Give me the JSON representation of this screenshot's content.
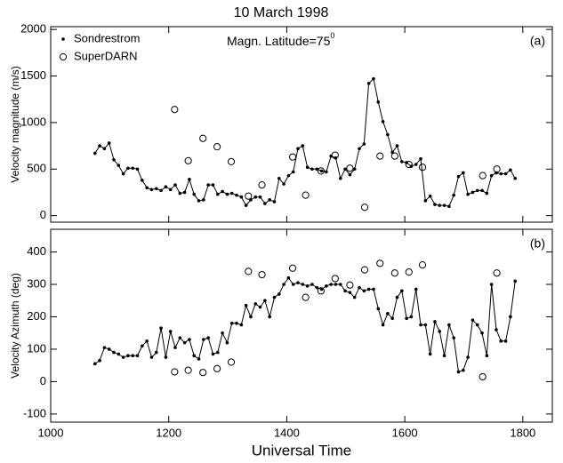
{
  "chart_data": [
    {
      "type": "line",
      "title": "10  March  1998",
      "ylabel": "Velocity magnitude (m/s)",
      "panel_label": "(a)",
      "annotation": "Magn. Latitude=75",
      "annotation_sup": "0",
      "xlim": [
        1000,
        1850
      ],
      "xticks": [
        1000,
        1200,
        1400,
        1600,
        1800
      ],
      "show_xtick_labels": false,
      "ylim": [
        -70,
        2030
      ],
      "yticks": [
        0,
        500,
        1000,
        1500,
        2000
      ],
      "legend": "upper left",
      "series": [
        {
          "name": "Sondrestrom",
          "color": "#000000",
          "style": "line-dot",
          "x": [
            1075,
            1083,
            1091,
            1099,
            1107,
            1115,
            1123,
            1131,
            1139,
            1147,
            1155,
            1163,
            1171,
            1179,
            1187,
            1195,
            1203,
            1211,
            1219,
            1227,
            1235,
            1243,
            1251,
            1259,
            1267,
            1275,
            1283,
            1291,
            1299,
            1307,
            1315,
            1323,
            1331,
            1339,
            1347,
            1355,
            1363,
            1371,
            1379,
            1387,
            1395,
            1403,
            1411,
            1419,
            1427,
            1435,
            1443,
            1451,
            1459,
            1467,
            1475,
            1483,
            1491,
            1499,
            1507,
            1515,
            1523,
            1531,
            1539,
            1547,
            1555,
            1563,
            1571,
            1579,
            1587,
            1595,
            1603,
            1611,
            1619,
            1627,
            1635,
            1643,
            1651,
            1659,
            1667,
            1675,
            1683,
            1691,
            1699,
            1707,
            1715,
            1723,
            1731,
            1739,
            1747,
            1755,
            1763,
            1771,
            1779,
            1787
          ],
          "values": [
            670,
            750,
            720,
            780,
            600,
            540,
            450,
            510,
            510,
            500,
            380,
            300,
            280,
            290,
            270,
            310,
            280,
            330,
            240,
            250,
            390,
            230,
            160,
            170,
            330,
            330,
            230,
            260,
            230,
            240,
            220,
            200,
            110,
            170,
            200,
            200,
            130,
            170,
            150,
            400,
            340,
            430,
            470,
            720,
            750,
            520,
            500,
            500,
            480,
            470,
            640,
            620,
            400,
            500,
            440,
            500,
            720,
            770,
            1420,
            1470,
            1220,
            1010,
            870,
            680,
            750,
            580,
            570,
            530,
            550,
            610,
            160,
            210,
            120,
            110,
            110,
            100,
            220,
            420,
            460,
            230,
            250,
            270,
            270,
            240,
            430,
            460,
            450,
            450,
            490,
            400
          ]
        },
        {
          "name": "SuperDARN",
          "color": "#000000",
          "style": "open-circle",
          "x": [
            1210,
            1233,
            1258,
            1282,
            1306,
            1335,
            1358,
            1410,
            1432,
            1458,
            1482,
            1507,
            1532,
            1558,
            1583,
            1607,
            1630,
            1732,
            1756
          ],
          "values": [
            1140,
            590,
            830,
            740,
            580,
            210,
            330,
            630,
            220,
            480,
            650,
            510,
            90,
            640,
            640,
            550,
            520,
            430,
            500
          ]
        }
      ]
    },
    {
      "type": "line",
      "ylabel": "Velocity Azimuth (deg)",
      "panel_label": "(b)",
      "xlabel": "Universal Time",
      "xlim": [
        1000,
        1850
      ],
      "xticks": [
        1000,
        1200,
        1400,
        1600,
        1800
      ],
      "show_xtick_labels": true,
      "ylim": [
        -125,
        470
      ],
      "yticks": [
        -100,
        0,
        100,
        200,
        300,
        400
      ],
      "series": [
        {
          "color": "#000000",
          "style": "line-dot",
          "x": [
            1075,
            1083,
            1091,
            1099,
            1107,
            1115,
            1123,
            1131,
            1139,
            1147,
            1155,
            1163,
            1171,
            1179,
            1187,
            1195,
            1203,
            1211,
            1219,
            1227,
            1235,
            1243,
            1251,
            1259,
            1267,
            1275,
            1283,
            1291,
            1299,
            1307,
            1315,
            1323,
            1331,
            1339,
            1347,
            1355,
            1363,
            1371,
            1379,
            1387,
            1395,
            1403,
            1411,
            1419,
            1427,
            1435,
            1443,
            1451,
            1459,
            1467,
            1475,
            1483,
            1491,
            1499,
            1507,
            1515,
            1523,
            1531,
            1539,
            1547,
            1555,
            1563,
            1571,
            1579,
            1587,
            1595,
            1603,
            1611,
            1619,
            1627,
            1635,
            1643,
            1651,
            1659,
            1667,
            1675,
            1683,
            1691,
            1699,
            1707,
            1715,
            1723,
            1731,
            1739,
            1747,
            1755,
            1763,
            1771,
            1779,
            1787
          ],
          "values": [
            55,
            65,
            105,
            100,
            90,
            85,
            75,
            80,
            80,
            80,
            110,
            125,
            75,
            90,
            165,
            75,
            155,
            105,
            135,
            120,
            130,
            80,
            70,
            130,
            135,
            85,
            90,
            150,
            120,
            180,
            180,
            175,
            235,
            200,
            240,
            230,
            250,
            200,
            260,
            270,
            300,
            320,
            300,
            305,
            300,
            295,
            300,
            290,
            285,
            295,
            300,
            300,
            300,
            280,
            275,
            260,
            290,
            280,
            285,
            285,
            225,
            175,
            210,
            195,
            260,
            280,
            195,
            200,
            285,
            175,
            175,
            85,
            185,
            155,
            80,
            175,
            135,
            30,
            35,
            75,
            190,
            175,
            150,
            80,
            300,
            160,
            125,
            125,
            200,
            310
          ]
        },
        {
          "color": "#000000",
          "style": "open-circle",
          "x": [
            1210,
            1233,
            1258,
            1282,
            1306,
            1335,
            1358,
            1410,
            1432,
            1458,
            1482,
            1507,
            1532,
            1558,
            1583,
            1607,
            1630,
            1732,
            1756
          ],
          "values": [
            30,
            35,
            28,
            40,
            60,
            340,
            330,
            350,
            260,
            280,
            318,
            298,
            345,
            365,
            335,
            338,
            360,
            15,
            335
          ]
        }
      ]
    }
  ]
}
